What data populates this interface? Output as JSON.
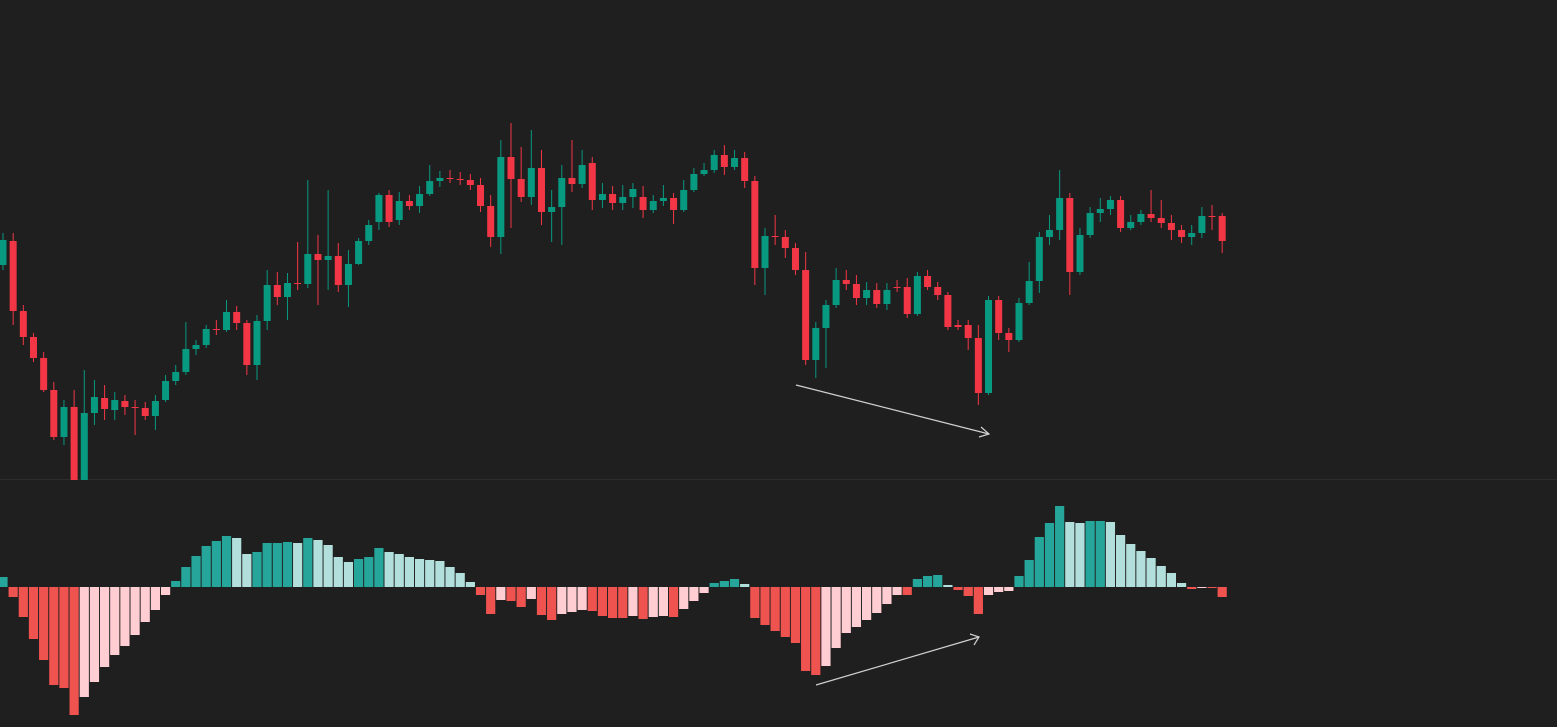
{
  "chart_data": [
    {
      "type": "candlestick",
      "up_color": "#089981",
      "down_color": "#f23645",
      "ylim": [
        0,
        480
      ],
      "open": [
        215,
        239,
        169,
        143,
        122,
        90,
        43,
        73,
        0,
        67,
        82,
        70,
        79,
        73,
        72,
        64,
        80,
        99,
        108,
        131,
        135,
        151,
        150,
        168,
        157,
        115,
        159,
        195,
        183,
        197,
        196,
        226,
        220,
        224,
        195,
        216,
        239,
        258,
        285,
        260,
        279,
        274,
        286,
        299,
        302,
        301,
        300,
        295,
        274,
        243,
        323,
        301,
        283,
        312,
        268,
        273,
        302,
        296,
        317,
        280,
        286,
        277,
        283,
        283,
        270,
        279,
        282,
        270,
        290,
        306,
        310,
        325,
        313,
        322,
        299,
        212,
        244,
        243,
        232,
        210,
        120,
        152,
        175,
        200,
        196,
        182,
        190,
        176,
        193,
        193,
        166,
        204,
        193,
        185,
        155,
        155,
        142,
        87,
        180,
        147,
        140,
        177,
        199,
        243,
        250,
        282,
        208,
        245,
        267,
        271,
        280,
        252,
        258,
        266,
        262,
        257,
        250,
        243,
        247,
        264,
        264
      ],
      "high": [
        247,
        247,
        175,
        147,
        128,
        98,
        80,
        90,
        110,
        100,
        95,
        88,
        85,
        80,
        78,
        85,
        105,
        115,
        158,
        140,
        155,
        160,
        180,
        174,
        160,
        165,
        210,
        208,
        207,
        238,
        300,
        245,
        290,
        237,
        230,
        242,
        260,
        287,
        290,
        288,
        285,
        294,
        315,
        309,
        310,
        308,
        306,
        302,
        285,
        340,
        357,
        333,
        350,
        330,
        290,
        315,
        340,
        330,
        323,
        297,
        294,
        295,
        297,
        294,
        285,
        295,
        287,
        300,
        312,
        317,
        330,
        335,
        330,
        328,
        304,
        252,
        265,
        250,
        237,
        228,
        158,
        180,
        212,
        210,
        205,
        198,
        197,
        197,
        200,
        202,
        208,
        210,
        198,
        188,
        160,
        160,
        155,
        184,
        184,
        152,
        182,
        218,
        248,
        265,
        310,
        287,
        252,
        273,
        282,
        284,
        284,
        265,
        270,
        290,
        280,
        265,
        255,
        255,
        273,
        275,
        267
      ],
      "low": [
        210,
        155,
        135,
        118,
        88,
        40,
        35,
        0,
        0,
        55,
        60,
        60,
        65,
        45,
        60,
        50,
        78,
        95,
        105,
        125,
        132,
        145,
        148,
        150,
        105,
        100,
        150,
        175,
        160,
        190,
        192,
        175,
        190,
        188,
        173,
        215,
        235,
        250,
        253,
        255,
        270,
        267,
        284,
        293,
        297,
        295,
        290,
        268,
        233,
        226,
        252,
        278,
        275,
        255,
        238,
        235,
        288,
        292,
        270,
        272,
        270,
        270,
        272,
        262,
        267,
        274,
        256,
        268,
        288,
        304,
        307,
        305,
        310,
        292,
        195,
        185,
        235,
        222,
        205,
        115,
        102,
        112,
        172,
        190,
        175,
        175,
        172,
        170,
        188,
        162,
        164,
        190,
        180,
        150,
        150,
        130,
        75,
        85,
        140,
        128,
        138,
        175,
        187,
        235,
        240,
        185,
        205,
        242,
        258,
        265,
        248,
        250,
        255,
        258,
        252,
        240,
        237,
        235,
        242,
        250,
        227
      ],
      "close": [
        240,
        169,
        143,
        122,
        90,
        43,
        73,
        0,
        67,
        83,
        71,
        80,
        73,
        72,
        64,
        79,
        99,
        108,
        131,
        135,
        151,
        150,
        168,
        157,
        115,
        159,
        195,
        183,
        197,
        196,
        226,
        220,
        224,
        195,
        216,
        239,
        255,
        285,
        258,
        279,
        274,
        286,
        299,
        302,
        301,
        300,
        295,
        274,
        243,
        323,
        301,
        283,
        312,
        268,
        273,
        302,
        296,
        315,
        280,
        286,
        277,
        283,
        291,
        270,
        279,
        282,
        270,
        290,
        306,
        310,
        325,
        313,
        322,
        299,
        212,
        244,
        243,
        232,
        210,
        120,
        152,
        175,
        200,
        196,
        182,
        190,
        176,
        190,
        192,
        166,
        204,
        193,
        185,
        153,
        153,
        142,
        87,
        180,
        147,
        140,
        177,
        199,
        243,
        250,
        282,
        208,
        245,
        267,
        271,
        280,
        252,
        258,
        266,
        262,
        257,
        250,
        243,
        247,
        264,
        263,
        239
      ]
    },
    {
      "type": "bar",
      "colors": [
        "#26a69a",
        "#b2dfdb",
        "#ffcdd2",
        "#ef5350"
      ],
      "ylim": [
        -140,
        107
      ],
      "values": [
        10,
        -10,
        -30,
        -52,
        -73,
        -98,
        -101,
        -128,
        -110,
        -95,
        -80,
        -68,
        -59,
        -48,
        -35,
        -23,
        -8,
        6,
        20,
        31,
        41,
        46,
        51,
        49,
        33,
        35,
        44,
        44,
        45,
        44,
        49,
        47,
        42,
        30,
        25,
        28,
        30,
        39,
        35,
        33,
        30,
        28,
        27,
        26,
        20,
        14,
        5,
        -8,
        -27,
        -13,
        -14,
        -20,
        -12,
        -28,
        -33,
        -27,
        -25,
        -23,
        -24,
        -29,
        -31,
        -31,
        -29,
        -32,
        -30,
        -29,
        -30,
        -22,
        -14,
        -6,
        4,
        6,
        8,
        3,
        -31,
        -38,
        -44,
        -50,
        -56,
        -84,
        -88,
        -79,
        -61,
        -46,
        -40,
        -33,
        -26,
        -17,
        -8,
        -8,
        8,
        11,
        12,
        2,
        -3,
        -9,
        -27,
        -8,
        -5,
        -4,
        11,
        27,
        50,
        64,
        81,
        65,
        64,
        66,
        66,
        65,
        52,
        43,
        36,
        29,
        21,
        14,
        4,
        -2,
        -1,
        -1,
        -10
      ]
    }
  ]
}
